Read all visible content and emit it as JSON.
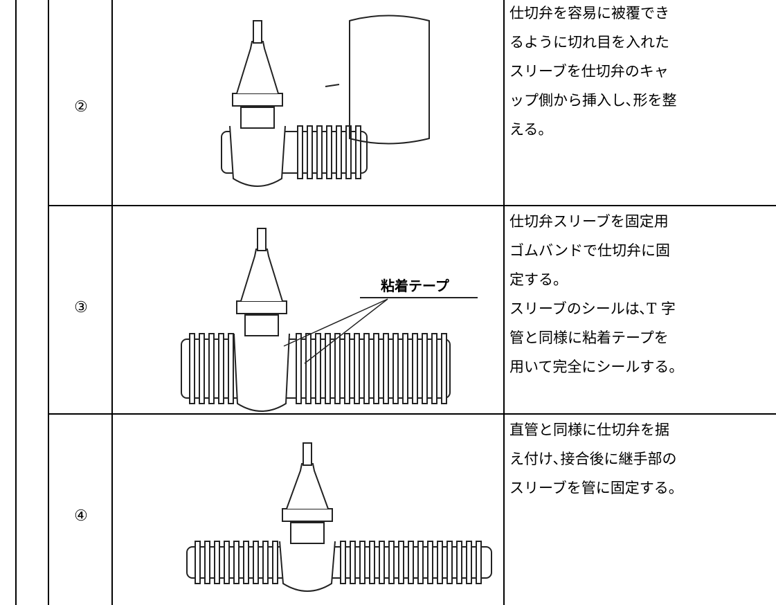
{
  "table": {
    "rows": [
      {
        "number": "②",
        "description": [
          "仕切弁を容易に被覆でき",
          "るように切れ目を入れた",
          "スリーブを仕切弁のキャ",
          "ップ側から挿入し､形を整",
          "える。"
        ]
      },
      {
        "number": "③",
        "image_label": "粘着テープ",
        "description": [
          "仕切弁スリーブを固定用",
          "ゴムバンドで仕切弁に固",
          "定する。",
          "スリーブのシールは､T 字",
          "管と同様に粘着テープを",
          "用いて完全にシールする。"
        ]
      },
      {
        "number": "④",
        "description": [
          "直管と同様に仕切弁を据",
          "え付け､接合後に継手部の",
          "スリーブを管に固定する。"
        ]
      }
    ]
  }
}
